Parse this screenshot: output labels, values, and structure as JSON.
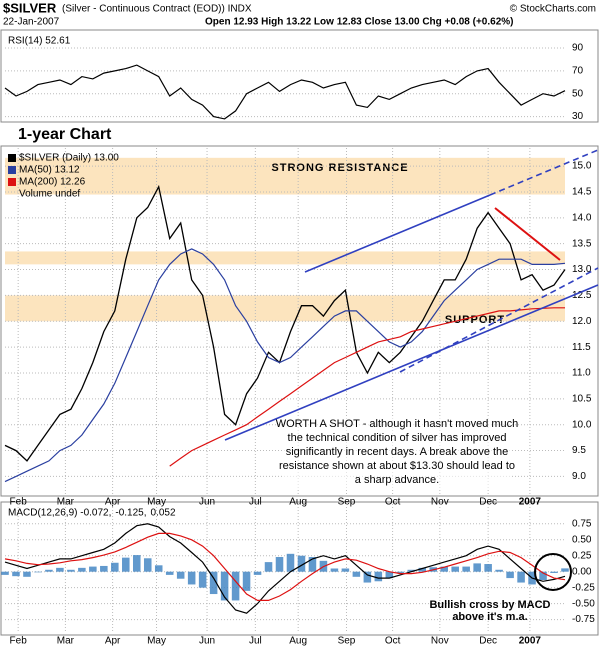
{
  "header": {
    "symbol": "$SILVER",
    "description": "(Silver - Continuous Contract (EOD)) INDX",
    "copyright": "© StockCharts.com",
    "date": "22-Jan-2007",
    "quote": "Open 12.93 High 13.22 Low 12.83 Close 13.00 Chg +0.08 (+0.62%)"
  },
  "chart_data": [
    {
      "type": "line",
      "ylim": [
        27,
        104
      ],
      "yticks": [
        90,
        70,
        50,
        30
      ],
      "grid": true,
      "xlim": [
        0,
        51
      ],
      "series": [
        {
          "name": "RSI(14) 52.61",
          "color": "#000000",
          "values": [
            55,
            48,
            52,
            58,
            60,
            62,
            58,
            65,
            63,
            68,
            70,
            72,
            75,
            70,
            65,
            48,
            55,
            45,
            40,
            30,
            28,
            35,
            50,
            55,
            60,
            52,
            58,
            62,
            60,
            55,
            58,
            60,
            40,
            38,
            48,
            45,
            50,
            55,
            58,
            60,
            62,
            58,
            65,
            70,
            72,
            60,
            50,
            40,
            45,
            50,
            48,
            52.61
          ]
        }
      ]
    },
    {
      "type": "line",
      "title": "1-year Chart",
      "ylim": [
        8.66,
        15.35
      ],
      "xlim": [
        0,
        51
      ],
      "grid": true,
      "yticks": [
        {
          "value": 9,
          "label": "9.0"
        },
        9.5,
        {
          "value": 10,
          "label": "10.0"
        },
        10.5,
        {
          "value": 11,
          "label": "11.0"
        },
        11.5,
        {
          "value": 12,
          "label": "12.0"
        },
        12.5,
        {
          "value": 13,
          "label": "13.0"
        },
        13.5,
        {
          "value": 14,
          "label": "14.0"
        },
        14.5,
        {
          "value": 15,
          "label": "15.0"
        }
      ],
      "xticks": [
        {
          "value": 1.2,
          "label": "Feb"
        },
        {
          "value": 5.5,
          "label": "Mar"
        },
        {
          "value": 9.8,
          "label": "Apr"
        },
        {
          "value": 13.8,
          "label": "May"
        },
        {
          "value": 18.4,
          "label": "Jun"
        },
        {
          "value": 22.8,
          "label": "Jul"
        },
        {
          "value": 26.7,
          "label": "Aug"
        },
        {
          "value": 31.1,
          "label": "Sep"
        },
        {
          "value": 35.3,
          "label": "Oct"
        },
        {
          "value": 39.6,
          "label": "Nov"
        },
        {
          "value": 44,
          "label": "Dec"
        },
        {
          "value": 47.8,
          "label": "2007"
        }
      ],
      "bands": [
        {
          "label": "STRONG RESISTANCE",
          "range": [
            14.45,
            15.16
          ]
        },
        {
          "range": [
            13.1,
            13.35
          ]
        },
        {
          "label": "SUPPORT",
          "range": [
            12.0,
            12.5
          ]
        }
      ],
      "series": [
        {
          "name": "$SILVER (Daily) 13.00",
          "color": "#000000",
          "values": [
            9.6,
            9.5,
            9.3,
            9.6,
            9.9,
            10.2,
            10.3,
            10.7,
            11.2,
            11.8,
            12.2,
            13.2,
            14.0,
            14.2,
            14.6,
            13.6,
            13.9,
            12.8,
            12.5,
            11.5,
            10.2,
            10.0,
            10.6,
            10.9,
            11.4,
            11.2,
            11.8,
            12.3,
            12.3,
            12.1,
            12.4,
            12.6,
            11.4,
            11.0,
            11.4,
            11.2,
            11.4,
            11.7,
            12.0,
            12.4,
            12.8,
            12.8,
            13.2,
            13.8,
            14.1,
            13.8,
            13.5,
            12.8,
            12.9,
            12.6,
            12.7,
            13.0
          ]
        },
        {
          "name": "MA(50) 13.12",
          "color": "#2a3fa0",
          "values": [
            8.9,
            9.0,
            9.1,
            9.2,
            9.3,
            9.5,
            9.6,
            9.8,
            10.1,
            10.4,
            10.8,
            11.3,
            11.8,
            12.3,
            12.8,
            13.1,
            13.3,
            13.4,
            13.3,
            13.1,
            12.8,
            12.3,
            12.0,
            11.6,
            11.3,
            11.2,
            11.3,
            11.5,
            11.7,
            11.9,
            12.1,
            12.2,
            12.2,
            12.0,
            11.8,
            11.6,
            11.5,
            11.6,
            11.8,
            12.1,
            12.4,
            12.6,
            12.8,
            13.0,
            13.1,
            13.2,
            13.2,
            13.2,
            13.1,
            13.1,
            13.1,
            13.12
          ]
        },
        {
          "name": "MA(200) 12.26",
          "color": "#dd1111",
          "values": [
            null,
            null,
            null,
            null,
            null,
            null,
            null,
            null,
            null,
            null,
            null,
            null,
            null,
            null,
            null,
            9.2,
            9.35,
            9.5,
            9.6,
            9.7,
            9.8,
            9.9,
            10.0,
            10.15,
            10.3,
            10.45,
            10.6,
            10.75,
            10.9,
            11.05,
            11.2,
            11.3,
            11.4,
            11.5,
            11.6,
            11.65,
            11.7,
            11.8,
            11.85,
            11.9,
            11.95,
            12.0,
            12.05,
            12.1,
            12.15,
            12.2,
            12.2,
            12.22,
            12.24,
            12.25,
            12.26,
            12.26
          ]
        }
      ],
      "extra_legend": "Volume undef",
      "note_lines": [
        "WORTH A SHOT - although it hasn't moved much",
        "the technical condition of silver has improved",
        "significantly in recent days. A break above the",
        "resistance shown at about $13.30 should lead to",
        "a sharp advance."
      ]
    },
    {
      "type": "line",
      "ylim": [
        -0.96,
        1.06
      ],
      "xlim": [
        0,
        51
      ],
      "grid": true,
      "yticks": [
        0.75,
        {
          "value": 0.5,
          "label": "0.50"
        },
        0.25,
        {
          "value": 0,
          "label": "0.00"
        },
        -0.25,
        {
          "value": -0.5,
          "label": "-0.50"
        },
        -0.75
      ],
      "xticks": [
        {
          "value": 1.2,
          "label": "Feb"
        },
        {
          "value": 5.5,
          "label": "Mar"
        },
        {
          "value": 9.8,
          "label": "Apr"
        },
        {
          "value": 13.8,
          "label": "May"
        },
        {
          "value": 18.4,
          "label": "Jun"
        },
        {
          "value": 22.8,
          "label": "Jul"
        },
        {
          "value": 26.7,
          "label": "Aug"
        },
        {
          "value": 31.1,
          "label": "Sep"
        },
        {
          "value": 35.3,
          "label": "Oct"
        },
        {
          "value": 39.6,
          "label": "Nov"
        },
        {
          "value": 44,
          "label": "Dec"
        },
        {
          "value": 47.8,
          "label": "2007"
        }
      ],
      "series": [
        {
          "name": "0.052",
          "type": "bar",
          "color": "#3a7fc0",
          "values": [
            -0.05,
            -0.07,
            -0.08,
            -0.01,
            0.03,
            0.06,
            0.03,
            0.06,
            0.08,
            0.09,
            0.14,
            0.22,
            0.26,
            0.21,
            0.1,
            -0.05,
            -0.11,
            -0.2,
            -0.25,
            -0.35,
            -0.45,
            -0.45,
            -0.3,
            -0.05,
            0.15,
            0.23,
            0.28,
            0.25,
            0.23,
            0.17,
            0.05,
            0.05,
            -0.08,
            -0.17,
            -0.15,
            -0.1,
            -0.02,
            0.03,
            0.06,
            0.07,
            0.08,
            0.08,
            0.08,
            0.13,
            0.12,
            0.03,
            -0.1,
            -0.17,
            -0.2,
            -0.13,
            -0.02,
            0.052
          ]
        },
        {
          "name": "MACD(12,26,9) -0.072,",
          "color": "#000000",
          "values": [
            0.15,
            0.1,
            0.05,
            0.1,
            0.15,
            0.2,
            0.2,
            0.25,
            0.3,
            0.35,
            0.45,
            0.6,
            0.72,
            0.75,
            0.7,
            0.55,
            0.45,
            0.3,
            0.15,
            -0.1,
            -0.4,
            -0.6,
            -0.65,
            -0.5,
            -0.3,
            -0.15,
            0,
            0.1,
            0.2,
            0.25,
            0.2,
            0.25,
            0.1,
            -0.05,
            -0.1,
            -0.1,
            -0.05,
            0,
            0.05,
            0.1,
            0.15,
            0.2,
            0.25,
            0.35,
            0.4,
            0.35,
            0.2,
            0.05,
            -0.1,
            -0.15,
            -0.12,
            -0.072
          ]
        },
        {
          "name": "-0.125,",
          "color": "#dd1111",
          "values": [
            0.2,
            0.17,
            0.13,
            0.11,
            0.12,
            0.14,
            0.17,
            0.19,
            0.22,
            0.26,
            0.31,
            0.38,
            0.46,
            0.54,
            0.6,
            0.6,
            0.56,
            0.5,
            0.4,
            0.25,
            0.05,
            -0.15,
            -0.35,
            -0.45,
            -0.45,
            -0.38,
            -0.28,
            -0.15,
            -0.03,
            0.08,
            0.15,
            0.2,
            0.18,
            0.12,
            0.05,
            0,
            -0.03,
            -0.03,
            -0.01,
            0.03,
            0.07,
            0.12,
            0.17,
            0.22,
            0.28,
            0.32,
            0.3,
            0.22,
            0.1,
            -0.02,
            -0.1,
            -0.125
          ]
        }
      ],
      "note_lines": [
        "Bullish cross by MACD",
        "above it's m.a."
      ]
    }
  ]
}
